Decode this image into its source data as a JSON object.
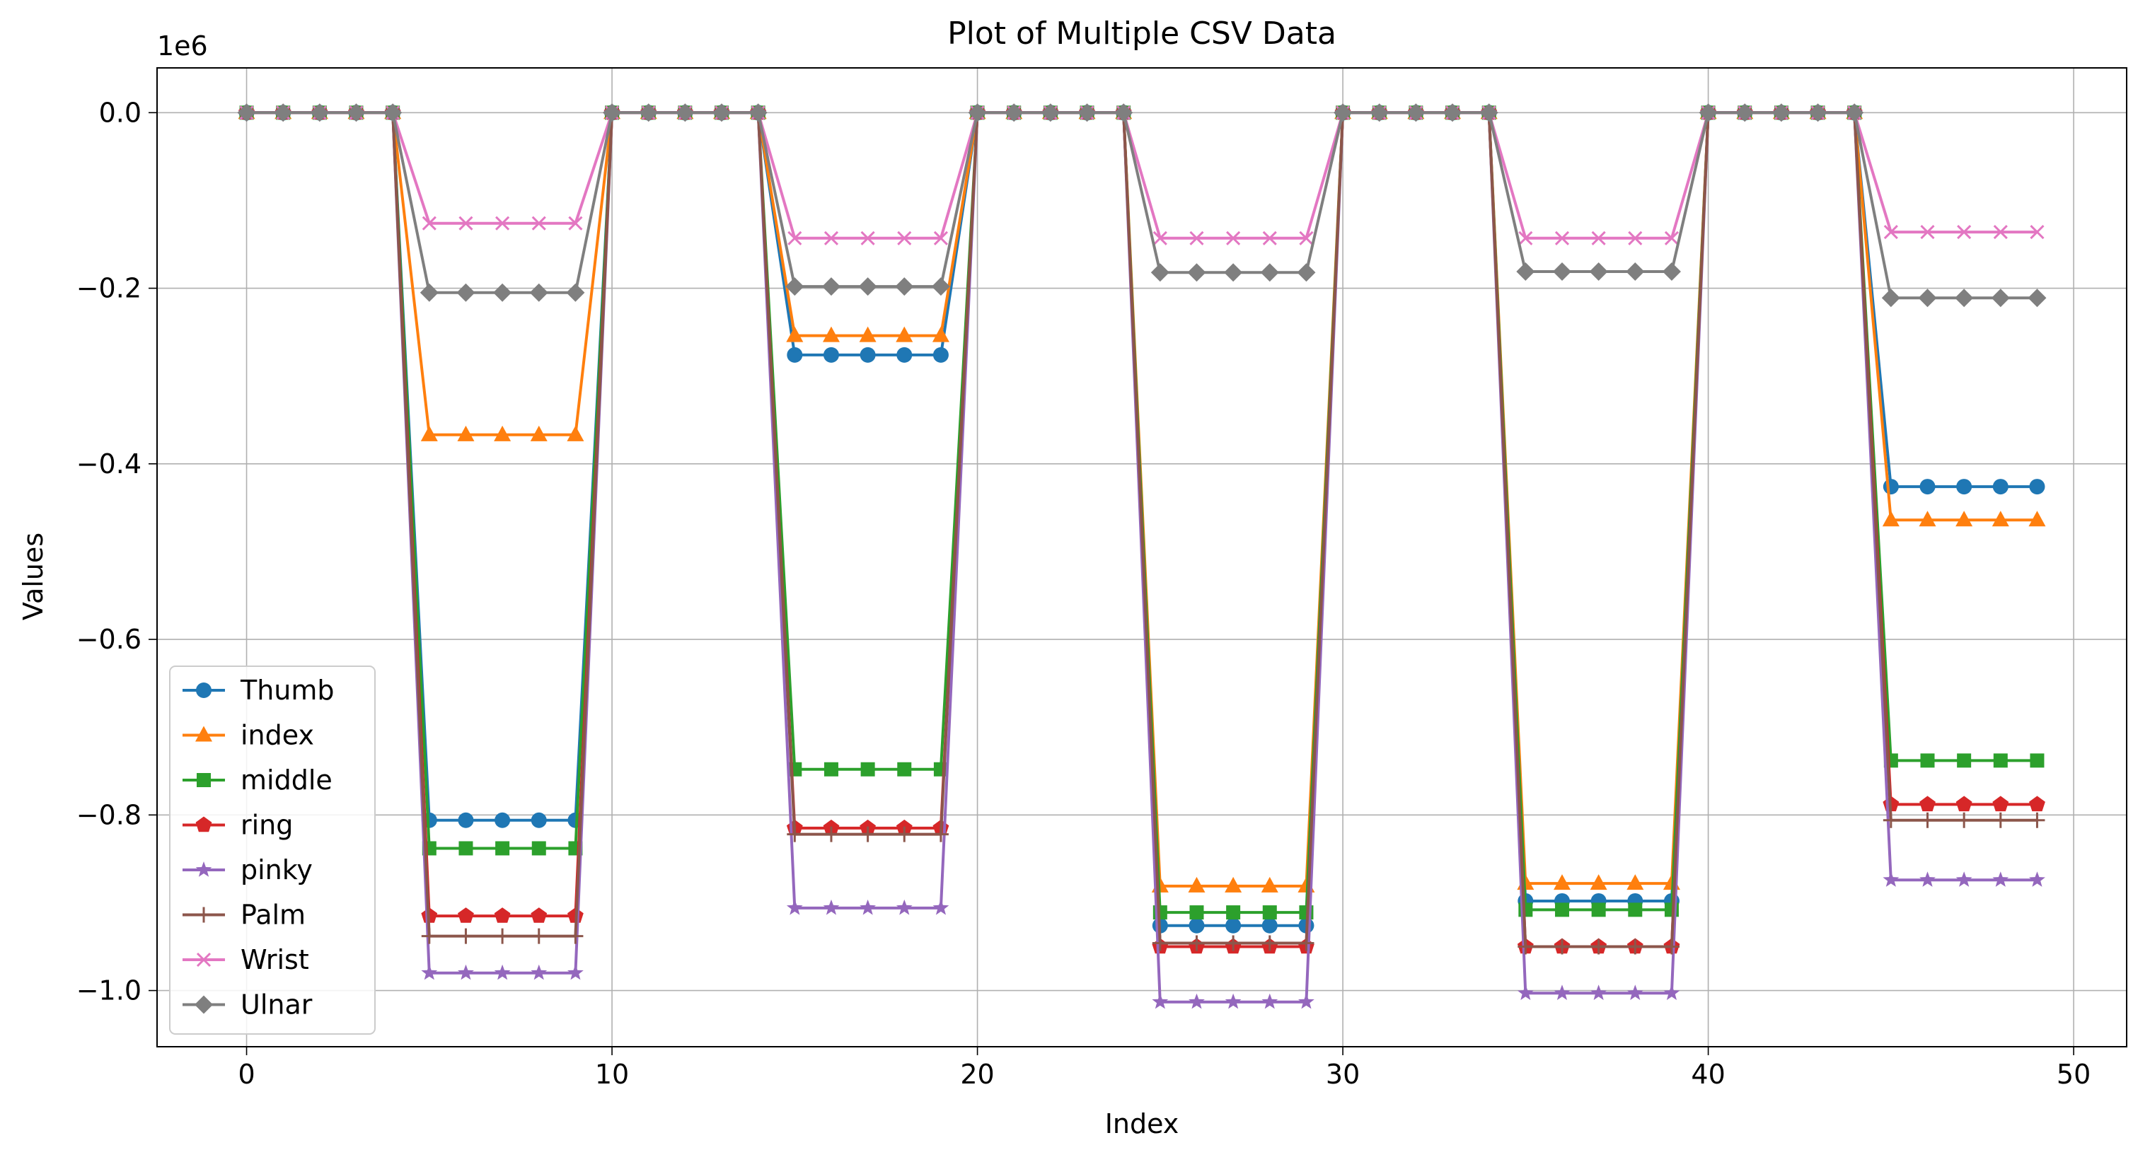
{
  "chart_data": {
    "type": "line",
    "title": "Plot of Multiple CSV Data",
    "xlabel": "Index",
    "ylabel": "Values",
    "y_scale_label": "1e6",
    "xlim": [
      -2.45,
      51.45
    ],
    "ylim": [
      -1.064,
      0.051
    ],
    "x_ticks": [
      0,
      10,
      20,
      30,
      40,
      50
    ],
    "x_tick_labels": [
      "0",
      "10",
      "20",
      "30",
      "40",
      "50"
    ],
    "y_ticks": [
      0.0,
      -0.2,
      -0.4,
      -0.6,
      -0.8,
      -1.0
    ],
    "y_tick_labels": [
      "0.0",
      "−0.2",
      "−0.4",
      "−0.6",
      "−0.8",
      "−1.0"
    ],
    "grid": true,
    "legend_position": "lower-left",
    "x": [
      0,
      1,
      2,
      3,
      4,
      5,
      6,
      7,
      8,
      9,
      10,
      11,
      12,
      13,
      14,
      15,
      16,
      17,
      18,
      19,
      20,
      21,
      22,
      23,
      24,
      25,
      26,
      27,
      28,
      29,
      30,
      31,
      32,
      33,
      34,
      35,
      36,
      37,
      38,
      39,
      40,
      41,
      42,
      43,
      44,
      45,
      46,
      47,
      48,
      49
    ],
    "series": [
      {
        "name": "Thumb",
        "color": "#1f77b4",
        "marker": "circle",
        "blocks": [
          -0.806,
          -0.276,
          -0.926,
          -0.898,
          -0.426
        ]
      },
      {
        "name": "index",
        "color": "#ff7f0e",
        "marker": "triangle",
        "blocks": [
          -0.367,
          -0.254,
          -0.881,
          -0.878,
          -0.464
        ]
      },
      {
        "name": "middle",
        "color": "#2ca02c",
        "marker": "square",
        "blocks": [
          -0.838,
          -0.748,
          -0.911,
          -0.908,
          -0.738
        ]
      },
      {
        "name": "ring",
        "color": "#d62728",
        "marker": "pentagon",
        "blocks": [
          -0.915,
          -0.815,
          -0.95,
          -0.95,
          -0.788
        ]
      },
      {
        "name": "pinky",
        "color": "#9467bd",
        "marker": "star",
        "blocks": [
          -0.98,
          -0.906,
          -1.013,
          -1.003,
          -0.874
        ]
      },
      {
        "name": "Palm",
        "color": "#8c564b",
        "marker": "plus",
        "blocks": [
          -0.938,
          -0.822,
          -0.946,
          -0.95,
          -0.806
        ]
      },
      {
        "name": "Wrist",
        "color": "#e377c2",
        "marker": "x",
        "blocks": [
          -0.126,
          -0.143,
          -0.143,
          -0.143,
          -0.136
        ]
      },
      {
        "name": "Ulnar",
        "color": "#7f7f7f",
        "marker": "diamond",
        "blocks": [
          -0.205,
          -0.198,
          -0.182,
          -0.181,
          -0.211
        ]
      }
    ]
  }
}
